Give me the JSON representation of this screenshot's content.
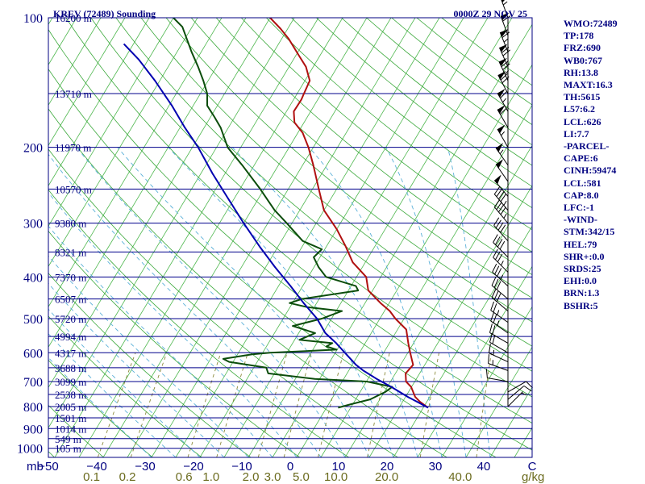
{
  "chart_data": {
    "type": "line",
    "title_left": "KREV (72489) Sounding",
    "title_right": "0000Z 29 NOV 25",
    "pressure_unit": "mb",
    "mixing_ratio_unit": "g/kg",
    "temperature_ticks": [
      "−50",
      "−40",
      "−30",
      "−20",
      "−10",
      "0",
      "10",
      "20",
      "30",
      "40",
      "C"
    ],
    "mixing_ratio_labels": [
      {
        "label": "0.1",
        "t": -42.4
      },
      {
        "label": "0.2",
        "t": -35.0
      },
      {
        "label": "0.6",
        "t": -23.3
      },
      {
        "label": "1.0",
        "t": -17.7
      },
      {
        "label": "2.0",
        "t": -9.5
      },
      {
        "label": "3.0",
        "t": -5.0
      },
      {
        "label": "5.0",
        "t": 0.9
      },
      {
        "label": "10.0",
        "t": 8.1
      },
      {
        "label": "20.0",
        "t": 18.6
      },
      {
        "label": "40.0",
        "t": 33.8
      }
    ],
    "pressure_levels": [
      {
        "label": "100",
        "p": 100
      },
      {
        "label": "200",
        "p": 200
      },
      {
        "label": "300",
        "p": 300
      },
      {
        "label": "400",
        "p": 400
      },
      {
        "label": "500",
        "p": 500
      },
      {
        "label": "600",
        "p": 600
      },
      {
        "label": "700",
        "p": 700
      },
      {
        "label": "800",
        "p": 800
      },
      {
        "label": "900",
        "p": 900
      },
      {
        "label": "1000",
        "p": 1000
      }
    ],
    "height_levels": [
      {
        "label": "16200 m",
        "p": 100
      },
      {
        "label": "13710 m",
        "p": 150
      },
      {
        "label": "11970 m",
        "p": 200
      },
      {
        "label": "10570 m",
        "p": 250
      },
      {
        "label": "9380 m",
        "p": 300
      },
      {
        "label": "8321 m",
        "p": 350
      },
      {
        "label": "7370 m",
        "p": 400
      },
      {
        "label": "6507 m",
        "p": 450
      },
      {
        "label": "5720 m",
        "p": 500
      },
      {
        "label": "4994 m",
        "p": 550
      },
      {
        "label": "4317 m",
        "p": 600
      },
      {
        "label": "3688 m",
        "p": 650
      },
      {
        "label": "3099 m",
        "p": 700
      },
      {
        "label": "2538 m",
        "p": 750
      },
      {
        "label": "2005 m",
        "p": 800
      },
      {
        "label": "1501 m",
        "p": 850
      },
      {
        "label": "1014 m",
        "p": 900
      },
      {
        "label": "549 m",
        "p": 950
      },
      {
        "label": "105 m",
        "p": 1000
      }
    ],
    "series": [
      {
        "key": "temperature",
        "color": "#b01010",
        "points": [
          [
            805,
            21.0
          ],
          [
            780,
            18.6
          ],
          [
            760,
            17.0
          ],
          [
            720,
            14.9
          ],
          [
            700,
            13.2
          ],
          [
            670,
            12.1
          ],
          [
            640,
            12.6
          ],
          [
            600,
            10.5
          ],
          [
            570,
            8.9
          ],
          [
            530,
            6.8
          ],
          [
            500,
            3.2
          ],
          [
            480,
            1.1
          ],
          [
            460,
            -1.8
          ],
          [
            430,
            -5.9
          ],
          [
            400,
            -8.0
          ],
          [
            370,
            -12.6
          ],
          [
            340,
            -16.0
          ],
          [
            310,
            -20.0
          ],
          [
            280,
            -25.0
          ],
          [
            250,
            -28.7
          ],
          [
            220,
            -32.8
          ],
          [
            200,
            -36.0
          ],
          [
            185,
            -39.0
          ],
          [
            175,
            -42.0
          ],
          [
            165,
            -43.5
          ],
          [
            155,
            -43.4
          ],
          [
            150,
            -43.6
          ],
          [
            140,
            -44.0
          ],
          [
            130,
            -46.5
          ],
          [
            122,
            -49.5
          ],
          [
            112,
            -53.5
          ],
          [
            106,
            -56.5
          ],
          [
            100,
            -60.0
          ]
        ]
      },
      {
        "key": "dewpoint",
        "color": "#0b4d0b",
        "points": [
          [
            805,
            2.4
          ],
          [
            790,
            4.6
          ],
          [
            770,
            8.0
          ],
          [
            740,
            10.2
          ],
          [
            720,
            11.0
          ],
          [
            700,
            5.1
          ],
          [
            690,
            -6.0
          ],
          [
            670,
            -16.3
          ],
          [
            650,
            -17.4
          ],
          [
            630,
            -25.8
          ],
          [
            620,
            -27.4
          ],
          [
            605,
            -22.0
          ],
          [
            600,
            -18.5
          ],
          [
            590,
            -5.1
          ],
          [
            580,
            -7.6
          ],
          [
            570,
            -6.8
          ],
          [
            560,
            -14.0
          ],
          [
            540,
            -11.6
          ],
          [
            520,
            -17.1
          ],
          [
            500,
            -12.0
          ],
          [
            480,
            -8.8
          ],
          [
            470,
            -16.5
          ],
          [
            460,
            -20.6
          ],
          [
            450,
            -18.5
          ],
          [
            430,
            -8.0
          ],
          [
            420,
            -9.0
          ],
          [
            400,
            -16.3
          ],
          [
            380,
            -19.0
          ],
          [
            360,
            -21.3
          ],
          [
            345,
            -20.6
          ],
          [
            330,
            -25.6
          ],
          [
            300,
            -31.1
          ],
          [
            280,
            -35.2
          ],
          [
            250,
            -40.8
          ],
          [
            220,
            -47.5
          ],
          [
            200,
            -52.7
          ],
          [
            180,
            -56.6
          ],
          [
            170,
            -59.2
          ],
          [
            160,
            -62.1
          ],
          [
            150,
            -63.6
          ],
          [
            140,
            -66.0
          ],
          [
            130,
            -68.8
          ],
          [
            120,
            -72.0
          ],
          [
            105,
            -77.0
          ],
          [
            100,
            -80.0
          ]
        ]
      },
      {
        "key": "parcel",
        "color": "#0000b0",
        "points": [
          [
            805,
            21.0
          ],
          [
            760,
            15.5
          ],
          [
            720,
            10.8
          ],
          [
            690,
            6.8
          ],
          [
            660,
            3.0
          ],
          [
            640,
            0.8
          ],
          [
            600,
            -3.0
          ],
          [
            570,
            -6.0
          ],
          [
            540,
            -9.5
          ],
          [
            500,
            -13.0
          ],
          [
            460,
            -17.7
          ],
          [
            420,
            -22.5
          ],
          [
            380,
            -28.0
          ],
          [
            340,
            -33.8
          ],
          [
            300,
            -40.0
          ],
          [
            260,
            -46.8
          ],
          [
            230,
            -52.6
          ],
          [
            200,
            -58.8
          ],
          [
            180,
            -64.0
          ],
          [
            160,
            -69.4
          ],
          [
            140,
            -76.0
          ],
          [
            125,
            -82.0
          ],
          [
            115,
            -87.0
          ]
        ]
      }
    ],
    "wind_barbs": [
      {
        "p": 100,
        "dir": 340,
        "kt": 55
      },
      {
        "p": 110,
        "dir": 340,
        "kt": 60
      },
      {
        "p": 120,
        "dir": 338,
        "kt": 65
      },
      {
        "p": 130,
        "dir": 336,
        "kt": 70
      },
      {
        "p": 140,
        "dir": 335,
        "kt": 75
      },
      {
        "p": 150,
        "dir": 332,
        "kt": 70
      },
      {
        "p": 165,
        "dir": 330,
        "kt": 65
      },
      {
        "p": 180,
        "dir": 330,
        "kt": 60
      },
      {
        "p": 200,
        "dir": 330,
        "kt": 55
      },
      {
        "p": 220,
        "dir": 325,
        "kt": 55
      },
      {
        "p": 240,
        "dir": 325,
        "kt": 50
      },
      {
        "p": 260,
        "dir": 320,
        "kt": 50
      },
      {
        "p": 280,
        "dir": 320,
        "kt": 45
      },
      {
        "p": 300,
        "dir": 320,
        "kt": 45
      },
      {
        "p": 330,
        "dir": 318,
        "kt": 40
      },
      {
        "p": 360,
        "dir": 315,
        "kt": 40
      },
      {
        "p": 390,
        "dir": 315,
        "kt": 35
      },
      {
        "p": 420,
        "dir": 312,
        "kt": 35
      },
      {
        "p": 450,
        "dir": 310,
        "kt": 30
      },
      {
        "p": 480,
        "dir": 310,
        "kt": 30
      },
      {
        "p": 510,
        "dir": 305,
        "kt": 25
      },
      {
        "p": 540,
        "dir": 305,
        "kt": 25
      },
      {
        "p": 570,
        "dir": 300,
        "kt": 20
      },
      {
        "p": 600,
        "dir": 300,
        "kt": 20
      },
      {
        "p": 630,
        "dir": 295,
        "kt": 15
      },
      {
        "p": 660,
        "dir": 290,
        "kt": 15
      },
      {
        "p": 700,
        "dir": 280,
        "kt": 10
      },
      {
        "p": 740,
        "dir": 60,
        "kt": 10
      },
      {
        "p": 770,
        "dir": 50,
        "kt": 10
      },
      {
        "p": 800,
        "dir": 45,
        "kt": 5
      }
    ],
    "grid": true,
    "background_lines": [
      "isobars",
      "isotherms",
      "dry adiabats",
      "moist adiabats",
      "mixing ratio"
    ]
  },
  "stats": [
    "WMO:72489",
    "TP:178",
    "FRZ:690",
    "WB0:767",
    "RH:13.8",
    "MAXT:16.3",
    "TH:5615",
    "L57:6.2",
    "LCL:626",
    "LI:7.7",
    "-PARCEL-",
    "CAPE:6",
    "CINH:59474",
    "LCL:581",
    "CAP:8.0",
    "LFC:-1",
    "-WIND-",
    "STM:342/15",
    "HEL:79",
    "SHR+:0.0",
    "SRDS:25",
    "EHI:0.0",
    "BRN:1.3",
    "BSHR:5"
  ],
  "colors": {
    "isobar": "#00008b",
    "isotherm": "#4fb84f",
    "dry_adiabat": "#3aa83a",
    "moist_adiabat": "#5ab0d8",
    "mixing_ratio": "#8a8a3a",
    "labels": "#000080",
    "mixing_ratio_labels": "#6b6b1e"
  }
}
